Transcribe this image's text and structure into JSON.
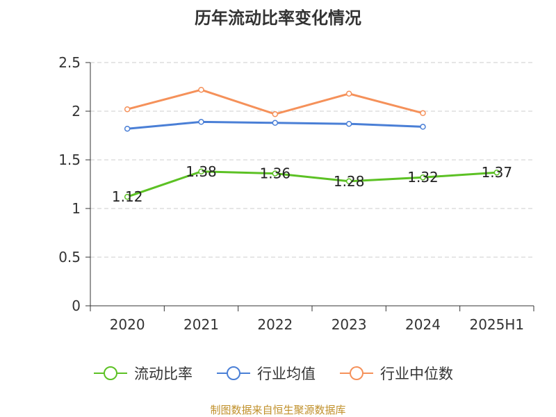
{
  "chart_data": {
    "type": "line",
    "title": "历年流动比率变化情况",
    "categories": [
      "2020",
      "2021",
      "2022",
      "2023",
      "2024",
      "2025H1"
    ],
    "ylim": [
      0,
      2.5
    ],
    "yticks": [
      "0",
      "0.5",
      "1",
      "1.5",
      "2",
      "2.5"
    ],
    "grid": true,
    "legend_position": "bottom",
    "series": [
      {
        "name": "流动比率",
        "color": "#5cc124",
        "values": [
          1.12,
          1.38,
          1.36,
          1.28,
          1.32,
          1.37
        ],
        "labels": [
          "1.12",
          "1.38",
          "1.36",
          "1.28",
          "1.32",
          "1.37"
        ]
      },
      {
        "name": "行业均值",
        "color": "#4a7fd6",
        "values": [
          1.82,
          1.89,
          1.88,
          1.87,
          1.84,
          null
        ]
      },
      {
        "name": "行业中位数",
        "color": "#f5915a",
        "values": [
          2.02,
          2.22,
          1.97,
          2.18,
          1.98,
          null
        ]
      }
    ]
  },
  "footer": "制图数据来自恒生聚源数据库"
}
